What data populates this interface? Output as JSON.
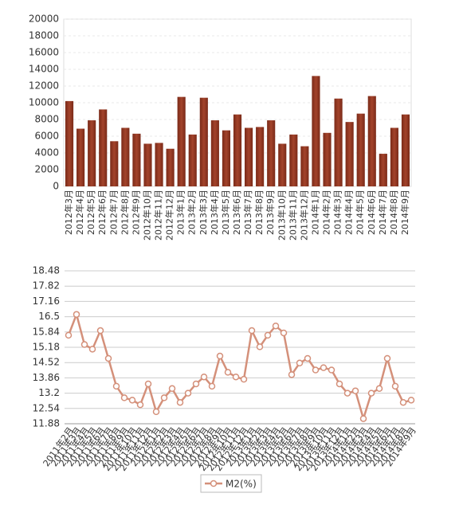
{
  "chart_data": [
    {
      "type": "bar",
      "categories": [
        "2012年3月",
        "2012年4月",
        "2012年5月",
        "2012年6月",
        "2012年7月",
        "2012年8月",
        "2012年9月",
        "2012年10月",
        "2012年11月",
        "2012年12月",
        "2013年1月",
        "2013年2月",
        "2013年3月",
        "2013年4月",
        "2013年5月",
        "2013年6月",
        "2013年7月",
        "2013年8月",
        "2013年9月",
        "2013年10月",
        "2013年11月",
        "2013年12月",
        "2014年1月",
        "2014年2月",
        "2014年3月",
        "2014年4月",
        "2014年5月",
        "2014年6月",
        "2014年7月",
        "2014年8月",
        "2014年9月"
      ],
      "values": [
        10200,
        6900,
        7900,
        9200,
        5400,
        7000,
        6300,
        5100,
        5200,
        4500,
        10700,
        6200,
        10600,
        7900,
        6700,
        8600,
        7000,
        7100,
        7900,
        5100,
        6200,
        4800,
        13200,
        6400,
        10500,
        7700,
        8700,
        10800,
        3900,
        7000,
        8600
      ],
      "color": "#a3432b",
      "ylim": [
        0,
        20000
      ],
      "yticks": [
        0,
        2000,
        4000,
        6000,
        8000,
        10000,
        12000,
        14000,
        16000,
        18000,
        20000
      ],
      "grid": true
    },
    {
      "type": "line",
      "categories": [
        "2011年2月",
        "2011年3月",
        "2011年4月",
        "2011年5月",
        "2011年6月",
        "2011年7月",
        "2011年8月",
        "2011年9月",
        "2011年10月",
        "2011年11月",
        "2011年12月",
        "2012年1月",
        "2012年2月",
        "2012年3月",
        "2012年4月",
        "2012年5月",
        "2012年6月",
        "2012年7月",
        "2012年8月",
        "2012年9月",
        "2012年10月",
        "2012年11月",
        "2012年12月",
        "2013年1月",
        "2013年2月",
        "2013年3月",
        "2013年4月",
        "2013年5月",
        "2013年6月",
        "2013年7月",
        "2013年8月",
        "2013年9月",
        "2013年10月",
        "2013年11月",
        "2013年12月",
        "2014年1月",
        "2014年2月",
        "2014年3月",
        "2014年4月",
        "2014年5月",
        "2014年6月",
        "2014年7月",
        "2014年8月",
        "2014年9月"
      ],
      "series": [
        {
          "name": "M2(%)",
          "color": "#d4907a",
          "values": [
            15.7,
            16.6,
            15.3,
            15.1,
            15.9,
            14.7,
            13.5,
            13.0,
            12.9,
            12.7,
            13.6,
            12.4,
            13.0,
            13.4,
            12.8,
            13.2,
            13.6,
            13.9,
            13.5,
            14.8,
            14.1,
            13.9,
            13.8,
            15.9,
            15.2,
            15.7,
            16.1,
            15.8,
            14.0,
            14.5,
            14.7,
            14.2,
            14.3,
            14.2,
            13.6,
            13.2,
            13.3,
            12.1,
            13.2,
            13.4,
            14.7,
            13.5,
            12.8,
            12.9
          ]
        }
      ],
      "ylim": [
        11.88,
        18.48
      ],
      "yticks": [
        11.88,
        12.54,
        13.2,
        13.86,
        14.52,
        15.18,
        15.84,
        16.5,
        17.16,
        17.82,
        18.48
      ],
      "grid": true
    }
  ]
}
